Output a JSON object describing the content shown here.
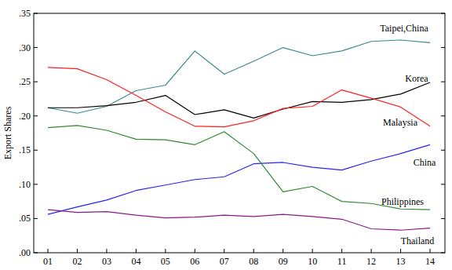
{
  "chart_data": {
    "type": "line",
    "y_label": "Export Shares",
    "categories": [
      "01",
      "02",
      "03",
      "04",
      "05",
      "06",
      "07",
      "08",
      "09",
      "10",
      "11",
      "12",
      "13",
      "14"
    ],
    "series": [
      {
        "name": "Taipei,China",
        "color": "#3b8c8c",
        "values": [
          0.212,
          0.204,
          0.214,
          0.237,
          0.245,
          0.295,
          0.261,
          0.28,
          0.3,
          0.288,
          0.295,
          0.309,
          0.311,
          0.307
        ]
      },
      {
        "name": "Korea",
        "color": "#000000",
        "values": [
          0.212,
          0.212,
          0.215,
          0.22,
          0.23,
          0.202,
          0.209,
          0.197,
          0.21,
          0.221,
          0.22,
          0.224,
          0.232,
          0.249
        ]
      },
      {
        "name": "Malaysia",
        "color": "#ff2020",
        "values": [
          0.271,
          0.269,
          0.253,
          0.23,
          0.206,
          0.185,
          0.184,
          0.193,
          0.211,
          0.214,
          0.238,
          0.226,
          0.213,
          0.185
        ]
      },
      {
        "name": "China",
        "color": "#2424ff",
        "values": [
          0.056,
          0.067,
          0.077,
          0.091,
          0.099,
          0.107,
          0.111,
          0.13,
          0.132,
          0.125,
          0.121,
          0.134,
          0.145,
          0.158
        ]
      },
      {
        "name": "Philippines",
        "color": "#2e8b2e",
        "values": [
          0.183,
          0.186,
          0.179,
          0.166,
          0.165,
          0.158,
          0.177,
          0.145,
          0.089,
          0.097,
          0.075,
          0.072,
          0.064,
          0.063
        ]
      },
      {
        "name": "Thailand",
        "color": "#8b1a8b",
        "values": [
          0.063,
          0.059,
          0.06,
          0.055,
          0.051,
          0.052,
          0.055,
          0.053,
          0.056,
          0.053,
          0.049,
          0.035,
          0.033,
          0.036
        ]
      }
    ],
    "ylim": [
      0,
      0.35
    ],
    "yticks": [
      {
        "value": 0,
        "label": ".00"
      },
      {
        "value": 0.05,
        "label": ".05"
      },
      {
        "value": 0.1,
        "label": ".10"
      },
      {
        "value": 0.15,
        "label": ".15"
      },
      {
        "value": 0.2,
        "label": ".20"
      },
      {
        "value": 0.25,
        "label": ".25"
      },
      {
        "value": 0.3,
        "label": ".30"
      },
      {
        "value": 0.35,
        "label": ".35"
      }
    ],
    "grid": false
  }
}
